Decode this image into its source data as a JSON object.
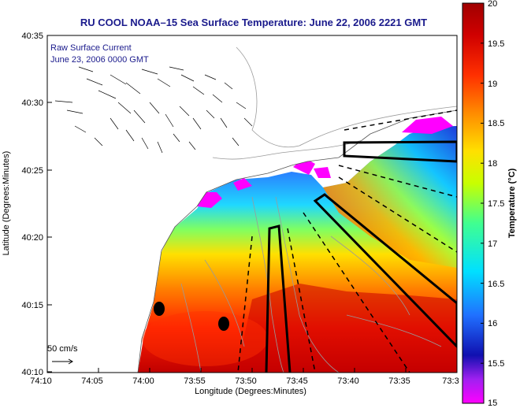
{
  "title": "RU COOL   NOAA–15  Sea Surface Temperature:  June 22, 2006 2221 GMT",
  "overlay": {
    "line1": "Raw Surface Current",
    "line2": "June 23, 2006 0000 GMT",
    "scale_label": "50 cm/s"
  },
  "axes": {
    "xlabel": "Longitude (Degrees:Minutes)",
    "ylabel": "Latitude (Degrees:Minutes)",
    "xticks": [
      "74:10",
      "74:05",
      "74:00",
      "73:55",
      "73:50",
      "73:45",
      "73:40",
      "73:35",
      "73:3"
    ],
    "yticks": [
      "40:35",
      "40:30",
      "40:25",
      "40:20",
      "40:15",
      "40:10"
    ]
  },
  "colorbar": {
    "label": "Temperature (°C)",
    "ticks": [
      "20",
      "19.5",
      "19",
      "18.5",
      "18",
      "17.5",
      "17",
      "16.5",
      "16",
      "15.5",
      "15"
    ],
    "range": [
      15,
      20
    ],
    "colors": [
      "#ff00ff",
      "#a020f0",
      "#2020c8",
      "#2090ff",
      "#00e0ff",
      "#40ffa0",
      "#c8ff00",
      "#ffe000",
      "#ff9000",
      "#ff3000",
      "#c80000",
      "#a00000"
    ]
  },
  "colors": {
    "title": "#1a1a8c",
    "land": "#ffffff",
    "contour": "#9a9a9a",
    "track": "#000000"
  },
  "markers": [
    {
      "name": "marker-1"
    },
    {
      "name": "marker-2"
    }
  ]
}
